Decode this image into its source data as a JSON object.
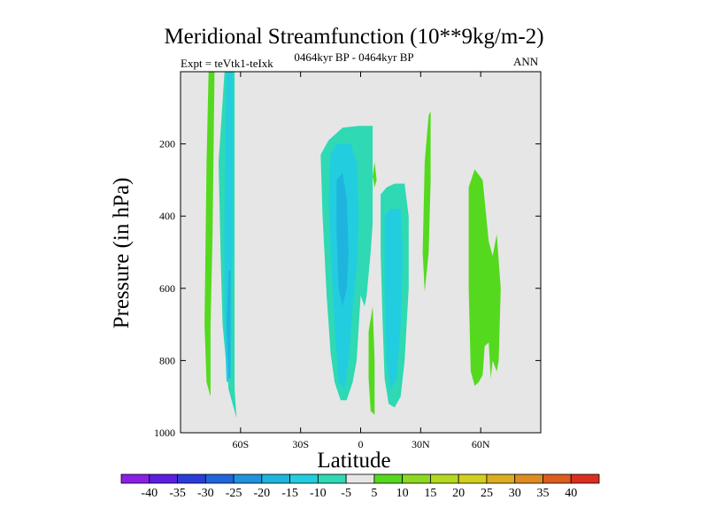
{
  "chart_data": {
    "type": "heatmap",
    "title": "Meridional Streamfunction (10**9kg/m-2)",
    "subtitle": "0464kyr BP - 0464kyr BP",
    "left_label": "Expt = teVtk1-teIxk",
    "right_label": "ANN",
    "xlabel": "Latitude",
    "ylabel": "Pressure (in hPa)",
    "xlim": [
      -90,
      90
    ],
    "ylim": [
      1000,
      0
    ],
    "x_ticks": [
      {
        "value": -60,
        "label": "60S"
      },
      {
        "value": -30,
        "label": "30S"
      },
      {
        "value": 0,
        "label": "0"
      },
      {
        "value": 30,
        "label": "30N"
      },
      {
        "value": 60,
        "label": "60N"
      }
    ],
    "y_ticks": [
      {
        "value": 200,
        "label": "200"
      },
      {
        "value": 400,
        "label": "400"
      },
      {
        "value": 600,
        "label": "600"
      },
      {
        "value": 800,
        "label": "800"
      },
      {
        "value": 1000,
        "label": "1000"
      }
    ],
    "colorbar": {
      "levels": [
        "-40",
        "-35",
        "-30",
        "-25",
        "-20",
        "-15",
        "-10",
        "-5",
        "5",
        "10",
        "15",
        "20",
        "25",
        "30",
        "35",
        "40"
      ],
      "colors": [
        "#8c1fe6",
        "#5a1fe0",
        "#2a3ddb",
        "#1f66db",
        "#1f93dd",
        "#1fb4dd",
        "#22cde0",
        "#2ed9b4",
        "#e6e6e6",
        "#55d91f",
        "#8cd91f",
        "#b4d91f",
        "#d4cf1f",
        "#dcae1f",
        "#dd8c1f",
        "#dd5c1f",
        "#dc2e1f"
      ]
    },
    "regions": [
      {
        "label": "-5",
        "color": "#2ed9b4",
        "points": [
          [
            -71,
            250
          ],
          [
            -68,
            0
          ],
          [
            -63,
            0
          ],
          [
            -63,
            600
          ],
          [
            -63,
            850
          ],
          [
            -63,
            880
          ],
          [
            -62,
            960
          ],
          [
            -66,
            880
          ],
          [
            -69,
            700
          ],
          [
            -70,
            500
          ]
        ]
      },
      {
        "label": "-10",
        "color": "#22cde0",
        "points": [
          [
            -68,
            400
          ],
          [
            -67,
            0
          ],
          [
            -64,
            0
          ],
          [
            -64,
            500
          ],
          [
            -65,
            850
          ],
          [
            -67,
            860
          ],
          [
            -68,
            700
          ]
        ]
      },
      {
        "label": "-15",
        "color": "#1fb4dd",
        "points": [
          [
            -67,
            700
          ],
          [
            -66,
            550
          ],
          [
            -65,
            550
          ],
          [
            -65,
            850
          ],
          [
            -66,
            850
          ]
        ]
      },
      {
        "label": "5",
        "color": "#55d91f",
        "points": [
          [
            -78,
            700
          ],
          [
            -77,
            250
          ],
          [
            -76,
            0
          ],
          [
            -73,
            0
          ],
          [
            -74,
            450
          ],
          [
            -75,
            700
          ],
          [
            -75,
            900
          ],
          [
            -77,
            860
          ]
        ]
      },
      {
        "label": "-5",
        "color": "#2ed9b4",
        "points": [
          [
            -20,
            230
          ],
          [
            -16,
            190
          ],
          [
            -9,
            155
          ],
          [
            -1,
            150
          ],
          [
            6,
            150
          ],
          [
            6,
            250
          ],
          [
            6,
            420
          ],
          [
            5,
            500
          ],
          [
            3,
            620
          ],
          [
            2,
            650
          ],
          [
            0,
            620
          ],
          [
            -2,
            800
          ],
          [
            -4,
            860
          ],
          [
            -7,
            910
          ],
          [
            -10,
            910
          ],
          [
            -13,
            860
          ],
          [
            -15,
            780
          ],
          [
            -17,
            620
          ],
          [
            -19,
            400
          ]
        ]
      },
      {
        "label": "-10",
        "color": "#22cde0",
        "points": [
          [
            -15,
            230
          ],
          [
            -12,
            200
          ],
          [
            -5,
            200
          ],
          [
            -2,
            250
          ],
          [
            -1,
            400
          ],
          [
            -2,
            550
          ],
          [
            -4,
            650
          ],
          [
            -6,
            800
          ],
          [
            -8,
            880
          ],
          [
            -11,
            860
          ],
          [
            -13,
            700
          ],
          [
            -15,
            500
          ],
          [
            -16,
            350
          ]
        ]
      },
      {
        "label": "-15",
        "color": "#1fb4dd",
        "points": [
          [
            -12,
            300
          ],
          [
            -9,
            280
          ],
          [
            -7,
            350
          ],
          [
            -6,
            500
          ],
          [
            -7,
            600
          ],
          [
            -9,
            650
          ],
          [
            -11,
            600
          ],
          [
            -12,
            450
          ]
        ]
      },
      {
        "label": "-5",
        "color": "#2ed9b4",
        "points": [
          [
            10,
            340
          ],
          [
            13,
            320
          ],
          [
            17,
            310
          ],
          [
            22,
            310
          ],
          [
            24,
            400
          ],
          [
            24,
            600
          ],
          [
            22,
            800
          ],
          [
            20,
            900
          ],
          [
            17,
            930
          ],
          [
            14,
            920
          ],
          [
            12,
            850
          ],
          [
            11,
            700
          ],
          [
            10,
            500
          ]
        ]
      },
      {
        "label": "-10",
        "color": "#22cde0",
        "points": [
          [
            12,
            400
          ],
          [
            15,
            380
          ],
          [
            20,
            380
          ],
          [
            21,
            500
          ],
          [
            20,
            700
          ],
          [
            18,
            850
          ],
          [
            15,
            880
          ],
          [
            13,
            800
          ],
          [
            12,
            600
          ]
        ]
      },
      {
        "label": "5",
        "color": "#55d91f",
        "points": [
          [
            4,
            720
          ],
          [
            6,
            650
          ],
          [
            7,
            800
          ],
          [
            7,
            950
          ],
          [
            5,
            940
          ],
          [
            4,
            850
          ]
        ]
      },
      {
        "label": "5",
        "color": "#55d91f",
        "points": [
          [
            6,
            290
          ],
          [
            7,
            250
          ],
          [
            8,
            300
          ],
          [
            7,
            320
          ]
        ]
      },
      {
        "label": "5",
        "color": "#55d91f",
        "points": [
          [
            32,
            250
          ],
          [
            34,
            120
          ],
          [
            35,
            110
          ],
          [
            35,
            300
          ],
          [
            34,
            500
          ],
          [
            32,
            610
          ],
          [
            31,
            500
          ]
        ]
      },
      {
        "label": "5",
        "color": "#55d91f",
        "points": [
          [
            54,
            320
          ],
          [
            57,
            270
          ],
          [
            61,
            300
          ],
          [
            64,
            470
          ],
          [
            66,
            510
          ],
          [
            68,
            450
          ],
          [
            70,
            600
          ],
          [
            69,
            800
          ],
          [
            68,
            830
          ],
          [
            66,
            800
          ],
          [
            65,
            850
          ],
          [
            64,
            750
          ],
          [
            62,
            760
          ],
          [
            61,
            840
          ],
          [
            59,
            860
          ],
          [
            57,
            870
          ],
          [
            55,
            830
          ],
          [
            54,
            600
          ]
        ]
      }
    ]
  }
}
